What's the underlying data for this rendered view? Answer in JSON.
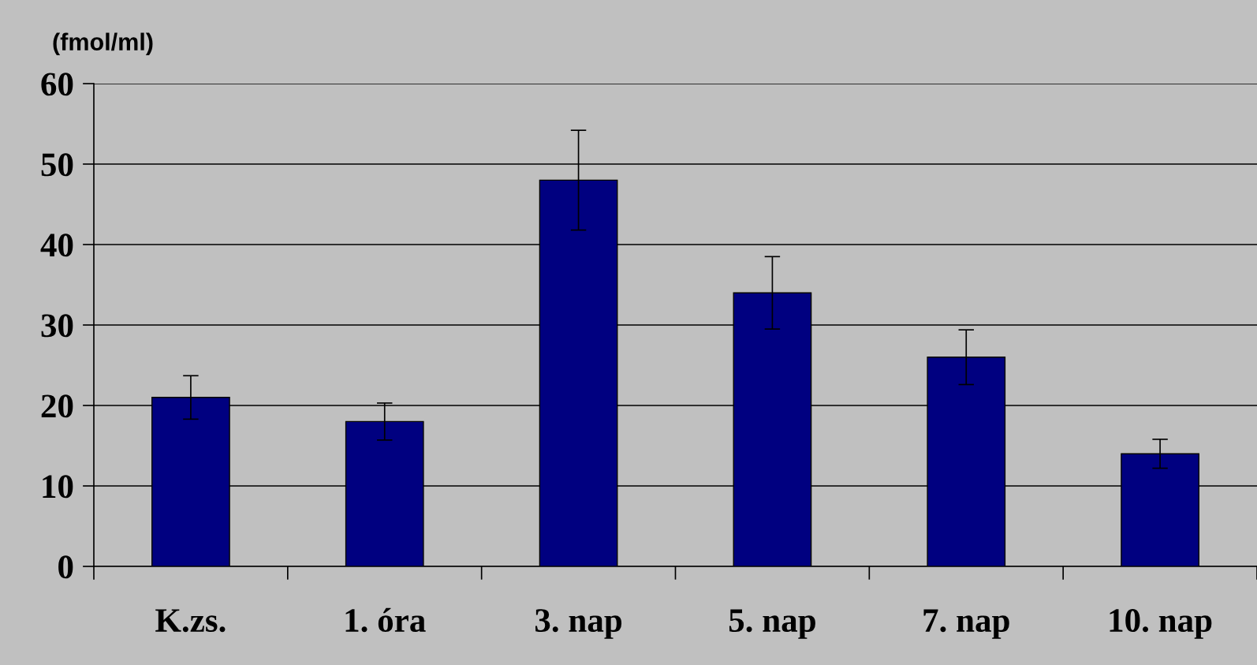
{
  "chart_data": {
    "type": "bar",
    "ylabel": "(fmol/ml)",
    "categories": [
      "K.zs.",
      "1. óra",
      "3. nap",
      "5. nap",
      "7. nap",
      "10. nap"
    ],
    "values": [
      21,
      18,
      48,
      34,
      26,
      14
    ],
    "errors": [
      2.7,
      2.3,
      6.2,
      4.5,
      3.4,
      1.8
    ],
    "color": "#000080",
    "ylim": [
      0,
      60
    ],
    "yticks": [
      0,
      10,
      20,
      30,
      40,
      50,
      60
    ],
    "grid": "y"
  }
}
